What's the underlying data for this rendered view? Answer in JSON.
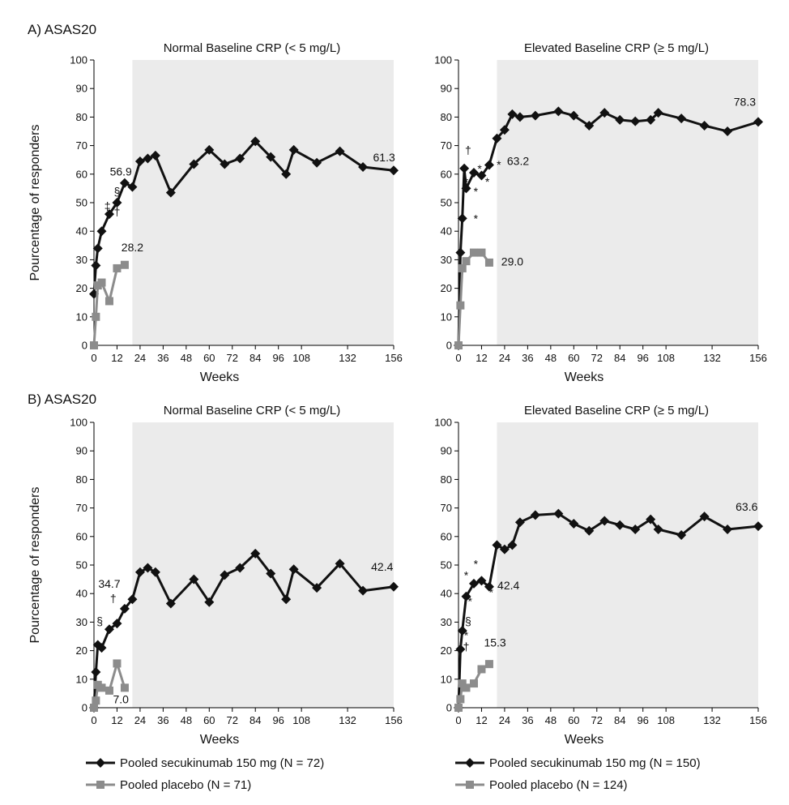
{
  "panel_titles": [
    "A) ASAS20",
    "B) ASAS20"
  ],
  "legend_left": [
    {
      "label": "Pooled secukinumab 150 mg (N = 72)",
      "color": "#111111",
      "marker": "diamond"
    },
    {
      "label": "Pooled placebo (N = 71)",
      "color": "#8c8c8c",
      "marker": "square"
    }
  ],
  "legend_right": [
    {
      "label": "Pooled secukinumab 150 mg (N = 150)",
      "color": "#111111",
      "marker": "diamond"
    },
    {
      "label": "Pooled placebo (N = 124)",
      "color": "#8c8c8c",
      "marker": "square"
    }
  ],
  "chart_data": [
    {
      "type": "line",
      "panel": "A) ASAS20",
      "subtitle": "Normal Baseline CRP (< 5 mg/L)",
      "xlabel": "Weeks",
      "ylabel": "Pourcentage of responders",
      "xlim": [
        0,
        156
      ],
      "ylim": [
        0,
        100
      ],
      "xticks": [
        0,
        12,
        24,
        36,
        48,
        60,
        72,
        84,
        96,
        108,
        132,
        156
      ],
      "yticks": [
        0,
        10,
        20,
        30,
        40,
        50,
        60,
        70,
        80,
        90,
        100
      ],
      "shaded_region_weeks": [
        20,
        156
      ],
      "series": [
        {
          "color": "#111111",
          "marker": "diamond",
          "x": [
            0,
            1,
            2,
            4,
            8,
            12,
            16,
            20,
            24,
            28,
            32,
            40,
            52,
            60,
            68,
            76,
            84,
            92,
            100,
            104,
            116,
            128,
            140,
            156
          ],
          "y": [
            18,
            28,
            34,
            40,
            46,
            50,
            56.9,
            55.5,
            64.5,
            65.5,
            66.5,
            53.5,
            63.5,
            68.5,
            63.5,
            65.5,
            71.5,
            66,
            60,
            68.5,
            64,
            68,
            62.5,
            61.3
          ]
        },
        {
          "color": "#8c8c8c",
          "marker": "square",
          "x": [
            0,
            1,
            2,
            4,
            8,
            12,
            16
          ],
          "y": [
            0,
            10,
            21,
            22,
            15.5,
            27,
            28.2
          ]
        }
      ],
      "annotations": [
        {
          "text": "56.9",
          "x": 14,
          "y": 59.5
        },
        {
          "text": "§",
          "x": 12,
          "y": 52.5
        },
        {
          "text": "‡",
          "x": 7,
          "y": 47.5
        },
        {
          "text": "†",
          "x": 12,
          "y": 45.5
        },
        {
          "text": "61.3",
          "x": 151,
          "y": 64.5
        },
        {
          "text": "28.2",
          "x": 20,
          "y": 33
        }
      ]
    },
    {
      "type": "line",
      "panel": "A) ASAS20",
      "subtitle": "Elevated Baseline CRP (≥ 5 mg/L)",
      "xlabel": "Weeks",
      "ylabel": "",
      "xlim": [
        0,
        156
      ],
      "ylim": [
        0,
        100
      ],
      "xticks": [
        0,
        12,
        24,
        36,
        48,
        60,
        72,
        84,
        96,
        108,
        132,
        156
      ],
      "yticks": [
        0,
        10,
        20,
        30,
        40,
        50,
        60,
        70,
        80,
        90,
        100
      ],
      "shaded_region_weeks": [
        20,
        156
      ],
      "series": [
        {
          "color": "#111111",
          "marker": "diamond",
          "x": [
            0,
            1,
            2,
            3,
            4,
            8,
            12,
            16,
            20,
            24,
            28,
            32,
            40,
            52,
            60,
            68,
            76,
            84,
            92,
            100,
            104,
            116,
            128,
            140,
            156
          ],
          "y": [
            0,
            32.5,
            44.5,
            62,
            55,
            60.5,
            59.5,
            63.2,
            72.5,
            75.5,
            81,
            80,
            80.5,
            82,
            80.5,
            77,
            81.5,
            79,
            78.5,
            79,
            81.5,
            79.5,
            77,
            75,
            78.3
          ]
        },
        {
          "color": "#8c8c8c",
          "marker": "square",
          "x": [
            0,
            1,
            2,
            4,
            8,
            12,
            16
          ],
          "y": [
            0,
            14,
            27,
            29.5,
            32.5,
            32.5,
            29
          ]
        }
      ],
      "annotations": [
        {
          "text": "†",
          "x": 5,
          "y": 67
        },
        {
          "text": "*",
          "x": 11,
          "y": 60.5
        },
        {
          "text": "*",
          "x": 4,
          "y": 56
        },
        {
          "text": "*",
          "x": 9,
          "y": 52.5
        },
        {
          "text": "*",
          "x": 15,
          "y": 56
        },
        {
          "text": "*",
          "x": 21,
          "y": 62
        },
        {
          "text": "*",
          "x": 9,
          "y": 43
        },
        {
          "text": "63.2",
          "x": 31,
          "y": 63.2
        },
        {
          "text": "78.3",
          "x": 149,
          "y": 84
        },
        {
          "text": "29.0",
          "x": 28,
          "y": 28
        }
      ]
    },
    {
      "type": "line",
      "panel": "B) ASAS20",
      "subtitle": "Normal Baseline CRP (< 5 mg/L)",
      "xlabel": "Weeks",
      "ylabel": "Pourcentage of responders",
      "xlim": [
        0,
        156
      ],
      "ylim": [
        0,
        100
      ],
      "xticks": [
        0,
        12,
        24,
        36,
        48,
        60,
        72,
        84,
        96,
        108,
        132,
        156
      ],
      "yticks": [
        0,
        10,
        20,
        30,
        40,
        50,
        60,
        70,
        80,
        90,
        100
      ],
      "shaded_region_weeks": [
        20,
        156
      ],
      "series": [
        {
          "color": "#111111",
          "marker": "diamond",
          "x": [
            0,
            1,
            2,
            4,
            8,
            12,
            16,
            20,
            24,
            28,
            32,
            40,
            52,
            60,
            68,
            76,
            84,
            92,
            100,
            104,
            116,
            128,
            140,
            156
          ],
          "y": [
            0,
            12.5,
            22,
            21,
            27.5,
            29.5,
            34.7,
            38,
            47.5,
            49,
            47.5,
            36.5,
            45,
            37,
            46.5,
            49,
            54,
            47,
            38,
            48.5,
            42,
            50.5,
            41,
            42.4
          ]
        },
        {
          "color": "#8c8c8c",
          "marker": "square",
          "x": [
            0,
            1,
            2,
            4,
            8,
            12,
            16
          ],
          "y": [
            0,
            2.5,
            8,
            7,
            6,
            15.5,
            7
          ]
        }
      ],
      "annotations": [
        {
          "text": "34.7",
          "x": 8,
          "y": 42
        },
        {
          "text": "†",
          "x": 10,
          "y": 37
        },
        {
          "text": "§",
          "x": 3,
          "y": 29
        },
        {
          "text": "42.4",
          "x": 150,
          "y": 48
        },
        {
          "text": "7.0",
          "x": 14,
          "y": 1.5
        }
      ]
    },
    {
      "type": "line",
      "panel": "B) ASAS20",
      "subtitle": "Elevated Baseline CRP (≥ 5 mg/L)",
      "xlabel": "Weeks",
      "ylabel": "",
      "xlim": [
        0,
        156
      ],
      "ylim": [
        0,
        100
      ],
      "xticks": [
        0,
        12,
        24,
        36,
        48,
        60,
        72,
        84,
        96,
        108,
        132,
        156
      ],
      "yticks": [
        0,
        10,
        20,
        30,
        40,
        50,
        60,
        70,
        80,
        90,
        100
      ],
      "shaded_region_weeks": [
        20,
        156
      ],
      "series": [
        {
          "color": "#111111",
          "marker": "diamond",
          "x": [
            0,
            1,
            2,
            4,
            8,
            12,
            16,
            20,
            24,
            28,
            32,
            40,
            52,
            60,
            68,
            76,
            84,
            92,
            100,
            104,
            116,
            128,
            140,
            156
          ],
          "y": [
            0,
            20.5,
            27,
            39,
            43.5,
            44.5,
            42.4,
            57,
            55.5,
            57,
            65,
            67.5,
            68,
            64.5,
            62,
            65.5,
            64,
            62.5,
            66,
            62.5,
            60.5,
            67,
            62.5,
            63.6
          ]
        },
        {
          "color": "#8c8c8c",
          "marker": "square",
          "x": [
            0,
            1,
            2,
            4,
            8,
            12,
            16
          ],
          "y": [
            0,
            3,
            8.5,
            7,
            8.5,
            13.5,
            15.3
          ]
        }
      ],
      "annotations": [
        {
          "text": "*",
          "x": 4,
          "y": 45
        },
        {
          "text": "*",
          "x": 9,
          "y": 49
        },
        {
          "text": "*",
          "x": 6,
          "y": 36
        },
        {
          "text": "*",
          "x": 17,
          "y": 39
        },
        {
          "text": "*",
          "x": 4,
          "y": 24
        },
        {
          "text": "§",
          "x": 5,
          "y": 29
        },
        {
          "text": "†",
          "x": 4,
          "y": 20
        },
        {
          "text": "42.4",
          "x": 26,
          "y": 41.5
        },
        {
          "text": "63.6",
          "x": 150,
          "y": 69
        },
        {
          "text": "15.3",
          "x": 19,
          "y": 21.5
        }
      ]
    }
  ]
}
